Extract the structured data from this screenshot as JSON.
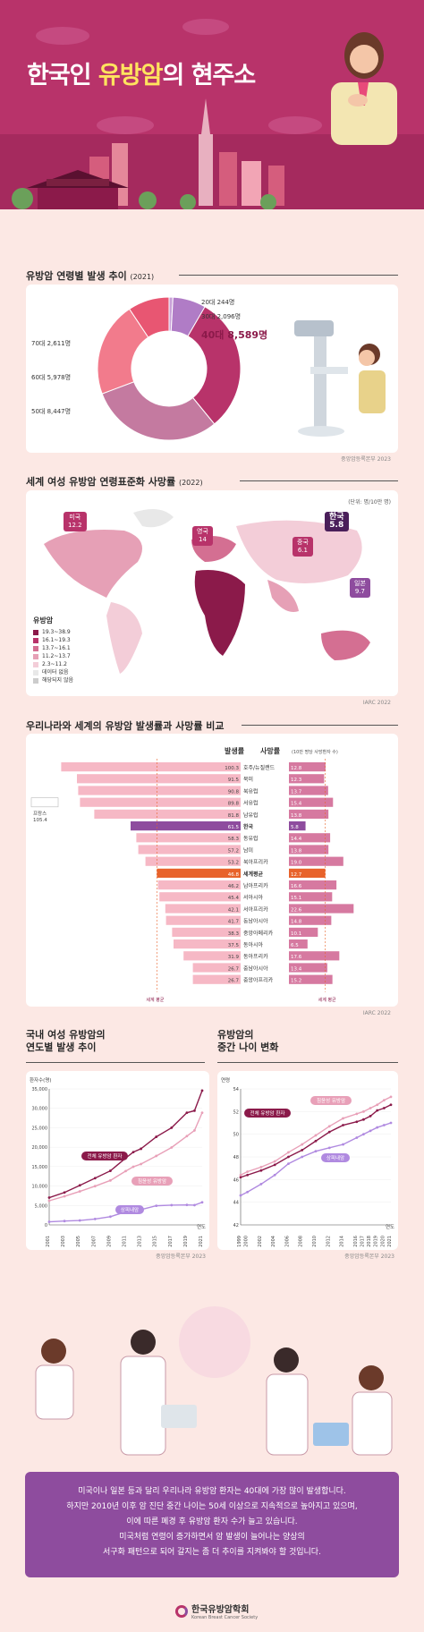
{
  "hero": {
    "title_pre": "한국인 ",
    "title_hl": "유방암",
    "title_post": "의 현주소"
  },
  "section1": {
    "title": "유방암 연령별 발생 추이",
    "year": "(2021)",
    "source": "중앙암등록본부 2023"
  },
  "section2": {
    "title": "세계 여성 유방암 연령표준화 사망률",
    "year": "(2022)",
    "unit": "(단위: 명/10만 명)",
    "source": "IARC 2022",
    "legend_title": "유방암"
  },
  "section3": {
    "title": "우리나라와 세계의 유방암 발생률과 사망률 비교",
    "col_incidence": "발생률",
    "col_mortality": "사망률",
    "col_mortality_unit": "(10만 명당 사망환자 수)",
    "world_avg_label": "세계 평균",
    "source": "IARC 2022",
    "outlier_label": "프랑스",
    "outlier_value": "105.4"
  },
  "section4": {
    "title_line1": "국내 여성 유방암의",
    "title_line2": "연도별 발생 추이",
    "source": "중앙암등록본부 2023",
    "y_unit": "환자수(명)",
    "x_unit": "연도"
  },
  "section5": {
    "title_line1": "유방암의",
    "title_line2": "중간 나이 변화",
    "source": "중앙암등록본부 2023",
    "y_unit": "연령",
    "x_unit": "연도"
  },
  "footer": {
    "line1": "미국이나 일본 등과 달리 우리나라 유방암 환자는 40대에 가장 많이 발생합니다.",
    "line2": "하지만 2010년 이후 암 진단 중간 나이는 50세 이상으로 지속적으로 높아지고 있으며,",
    "line3": "이에 따른 폐경 후 유방암 환자 수가 늘고 있습니다.",
    "line4": "미국처럼 연령이 증가하면서 암 발생이 늘어나는 양상의",
    "line5": "서구화 패턴으로 되어 갈지는 좀 더 추이를 지켜봐야 할 것입니다."
  },
  "logo": {
    "ko": "한국유방암학회",
    "en": "Korean Breast Cancer Society"
  },
  "colors": {
    "hero": "#b8336a",
    "dark": "#8b1a4a",
    "accent_purple": "#8e4c9e",
    "highlight": "#ffe45e",
    "orange": "#e8632b"
  },
  "chart_data": [
    {
      "type": "pie",
      "id": "age-donut",
      "categories": [
        "20대",
        "30대",
        "40대",
        "50대",
        "60대",
        "70대"
      ],
      "values": [
        244,
        2096,
        8589,
        8447,
        5978,
        2611
      ],
      "labels": [
        "20대 244명",
        "30대 2,096명",
        "40대 8,589명",
        "50대 8,447명",
        "60대 5,978명",
        "70대 2,611명"
      ],
      "colors": [
        "#c9a0d8",
        "#b07cc6",
        "#b8336a",
        "#c47aa0",
        "#f27b8c",
        "#e85672"
      ]
    },
    {
      "type": "map",
      "id": "world-mortality",
      "legend": [
        {
          "label": "19.3~38.9",
          "color": "#8b1a4a"
        },
        {
          "label": "16.1~19.3",
          "color": "#b8336a"
        },
        {
          "label": "13.7~16.1",
          "color": "#d46f92"
        },
        {
          "label": "11.2~13.7",
          "color": "#e6a0b6"
        },
        {
          "label": "2.3~11.2",
          "color": "#f3cdd8"
        },
        {
          "label": "데이터 없음",
          "color": "#e8e8e8"
        },
        {
          "label": "해당되지 않음",
          "color": "#cccccc"
        }
      ],
      "callouts": [
        {
          "name": "미국",
          "value": "12.2"
        },
        {
          "name": "영국",
          "value": "14"
        },
        {
          "name": "중국",
          "value": "6.1"
        },
        {
          "name": "한국",
          "value": "5.8"
        },
        {
          "name": "일본",
          "value": "9.7"
        }
      ]
    },
    {
      "type": "bar",
      "id": "incidence-mortality",
      "categories": [
        "호주/뉴질랜드",
        "북미",
        "북유럽",
        "서유럽",
        "남유럽",
        "한국",
        "동유럽",
        "남미",
        "북아프리카",
        "세계평균",
        "남아프리카",
        "서아시아",
        "서아프리카",
        "동남아시아",
        "중앙아메리카",
        "동아시아",
        "동아프리카",
        "중남아시아",
        "중앙아프리카"
      ],
      "series": [
        {
          "name": "발생률",
          "values": [
            100.3,
            91.5,
            90.8,
            89.8,
            81.8,
            61.5,
            58.3,
            57.2,
            53.2,
            46.8,
            46.2,
            45.4,
            42.1,
            41.7,
            38.3,
            37.5,
            31.9,
            26.7,
            26.7
          ]
        },
        {
          "name": "사망률",
          "values": [
            12.8,
            12.3,
            13.7,
            15.4,
            13.8,
            5.8,
            14.4,
            13.8,
            19.0,
            12.7,
            16.6,
            15.1,
            22.6,
            14.8,
            10.1,
            6.5,
            17.6,
            13.4,
            15.2
          ]
        }
      ],
      "highlight": {
        "한국": "#8e4c9e",
        "세계평균": "#e8632b"
      },
      "world_avg": [
        46.8,
        12.7
      ]
    },
    {
      "type": "line",
      "id": "yearly-cases",
      "x": [
        "2001",
        "2003",
        "2005",
        "2007",
        "2009",
        "2011",
        "2013",
        "2015",
        "2017",
        "2019",
        "2021"
      ],
      "ylim": [
        0,
        35000
      ],
      "yticks": [
        0,
        5000,
        10000,
        15000,
        20000,
        25000,
        30000,
        35000
      ],
      "series": [
        {
          "name": "전체 유방암 환자",
          "values": [
            7014,
            8350,
            10172,
            12023,
            13911,
            17195,
            18736,
            19586,
            22665,
            25003,
            28861,
            29391,
            34558
          ],
          "x": [
            2001,
            2003,
            2005,
            2007,
            2009,
            2011,
            2012,
            2013,
            2015,
            2017,
            2019,
            2020,
            2021
          ]
        },
        {
          "name": "침윤성 유방암",
          "values": [
            6216,
            7360,
            8620,
            9970,
            11440,
            13840,
            14967,
            15657,
            17741,
            19920,
            22839,
            24309,
            28863
          ],
          "x": [
            2001,
            2003,
            2005,
            2007,
            2009,
            2011,
            2012,
            2013,
            2015,
            2017,
            2019,
            2020,
            2021
          ]
        },
        {
          "name": "상피내암",
          "values": [
            798,
            990,
            1142,
            1515,
            2121,
            3355,
            3769,
            3929,
            4924,
            5083,
            5142,
            5082,
            5808
          ],
          "x": [
            2001,
            2003,
            2005,
            2007,
            2009,
            2011,
            2012,
            2013,
            2015,
            2017,
            2019,
            2020,
            2021
          ]
        }
      ]
    },
    {
      "type": "line",
      "id": "median-age",
      "x": [
        "1999",
        "2000",
        "2002",
        "2004",
        "2006",
        "2008",
        "2010",
        "2012",
        "2014",
        "2016",
        "2017",
        "2018",
        "2019",
        "2020",
        "2021"
      ],
      "ylim": [
        42,
        54
      ],
      "yticks": [
        42,
        44,
        46,
        48,
        50,
        52,
        54
      ],
      "series": [
        {
          "name": "전체 유방암 환자",
          "values": [
            46.2,
            46.4,
            46.8,
            47.3,
            48.0,
            48.6,
            49.4,
            50.2,
            50.8,
            51.1,
            51.3,
            51.6,
            52.1,
            52.3,
            52.6
          ],
          "x": [
            1999,
            2000,
            2002,
            2004,
            2006,
            2008,
            2010,
            2012,
            2014,
            2016,
            2017,
            2018,
            2019,
            2020,
            2021
          ]
        },
        {
          "name": "침윤성 유방암",
          "values": [
            46.4,
            46.7,
            47.1,
            47.6,
            48.4,
            49.1,
            49.9,
            50.7,
            51.4,
            51.8,
            52.0,
            52.3,
            52.6,
            53.0,
            53.3
          ],
          "x": [
            1999,
            2000,
            2002,
            2004,
            2006,
            2008,
            2010,
            2012,
            2014,
            2016,
            2017,
            2018,
            2019,
            2020,
            2021
          ]
        },
        {
          "name": "상피내암",
          "values": [
            44.6,
            44.9,
            45.6,
            46.4,
            47.4,
            48.0,
            48.5,
            48.8,
            49.1,
            49.7,
            50.0,
            50.3,
            50.6,
            50.8,
            51.0
          ],
          "x": [
            1999,
            2000,
            2002,
            2004,
            2006,
            2008,
            2010,
            2012,
            2014,
            2016,
            2017,
            2018,
            2019,
            2020,
            2021
          ]
        }
      ]
    }
  ]
}
